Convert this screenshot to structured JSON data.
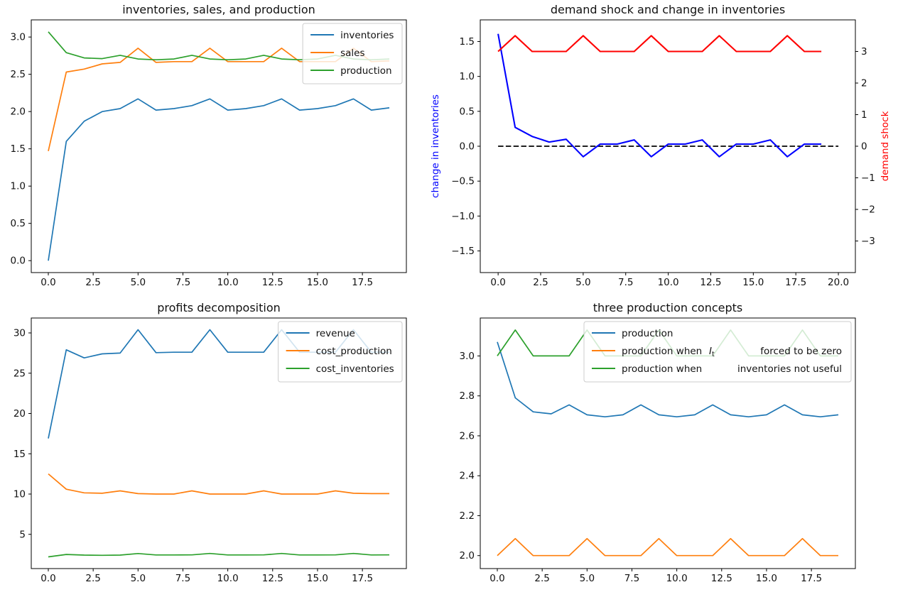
{
  "chart_data": [
    {
      "type": "line",
      "title": "inventories, sales, and production",
      "x": [
        0,
        1,
        2,
        3,
        4,
        5,
        6,
        7,
        8,
        9,
        10,
        11,
        12,
        13,
        14,
        15,
        16,
        17,
        18,
        19
      ],
      "series": [
        {
          "name": "inventories",
          "color": "#1f77b4",
          "values": [
            0.0,
            1.6,
            1.87,
            2.0,
            2.04,
            2.17,
            2.02,
            2.04,
            2.08,
            2.17,
            2.02,
            2.04,
            2.08,
            2.17,
            2.02,
            2.04,
            2.08,
            2.17,
            2.02,
            2.05
          ]
        },
        {
          "name": "sales",
          "color": "#ff7f0e",
          "values": [
            1.47,
            2.53,
            2.57,
            2.64,
            2.66,
            2.85,
            2.66,
            2.67,
            2.67,
            2.85,
            2.67,
            2.67,
            2.67,
            2.85,
            2.67,
            2.67,
            2.67,
            2.85,
            2.67,
            2.68
          ]
        },
        {
          "name": "production",
          "color": "#2ca02c",
          "values": [
            3.07,
            2.79,
            2.72,
            2.71,
            2.755,
            2.705,
            2.695,
            2.705,
            2.755,
            2.705,
            2.695,
            2.705,
            2.755,
            2.705,
            2.695,
            2.705,
            2.755,
            2.705,
            2.695,
            2.705
          ]
        }
      ],
      "xlim": [
        -0.95,
        19.95
      ],
      "ylim": [
        -0.16,
        3.23
      ],
      "xticks": [
        0,
        2.5,
        5,
        7.5,
        10,
        12.5,
        15,
        17.5
      ],
      "xtick_labels": [
        "0.0",
        "2.5",
        "5.0",
        "7.5",
        "10.0",
        "12.5",
        "15.0",
        "17.5"
      ],
      "yticks": [
        0,
        0.5,
        1,
        1.5,
        2,
        2.5,
        3
      ],
      "ytick_labels": [
        "0.0",
        "0.5",
        "1.0",
        "1.5",
        "2.0",
        "2.5",
        "3.0"
      ],
      "legend": {
        "position": "upper right",
        "entries": [
          {
            "label": "inventories"
          },
          {
            "label": "sales"
          },
          {
            "label": "production"
          }
        ]
      },
      "grid": false
    },
    {
      "type": "line",
      "title": "demand shock and change in inventories",
      "x": [
        0,
        1,
        2,
        3,
        4,
        5,
        6,
        7,
        8,
        9,
        10,
        11,
        12,
        13,
        14,
        15,
        16,
        17,
        18,
        19
      ],
      "ylabel_left": "change in inventories",
      "ylabel_left_color": "#0000ff",
      "ylabel_right": "demand shock",
      "ylabel_right_color": "#ff0000",
      "series": [
        {
          "name": "zero reference",
          "color": "#000000",
          "style": "dashed",
          "axis": "left",
          "x": [
            0,
            1,
            2,
            3,
            4,
            5,
            6,
            7,
            8,
            9,
            10,
            11,
            12,
            13,
            14,
            15,
            16,
            17,
            18,
            19,
            20
          ],
          "values": [
            0,
            0,
            0,
            0,
            0,
            0,
            0,
            0,
            0,
            0,
            0,
            0,
            0,
            0,
            0,
            0,
            0,
            0,
            0,
            0,
            0
          ]
        },
        {
          "name": "change in inventories",
          "color": "#0000ff",
          "axis": "left",
          "values": [
            1.61,
            0.27,
            0.14,
            0.06,
            0.1,
            -0.15,
            0.03,
            0.03,
            0.09,
            -0.15,
            0.03,
            0.03,
            0.09,
            -0.15,
            0.03,
            0.03,
            0.09,
            -0.15,
            0.03,
            0.03
          ]
        },
        {
          "name": "demand shock",
          "color": "#ff0000",
          "axis": "right",
          "values": [
            3,
            3.5,
            3,
            3,
            3,
            3.5,
            3,
            3,
            3,
            3.5,
            3,
            3,
            3,
            3.5,
            3,
            3,
            3,
            3.5,
            3,
            3
          ]
        }
      ],
      "xlim": [
        -1.05,
        21.0
      ],
      "ylim_left": [
        -1.81,
        1.81
      ],
      "ylim_right": [
        -4.0,
        4.0
      ],
      "xticks": [
        0,
        2.5,
        5,
        7.5,
        10,
        12.5,
        15,
        17.5,
        20
      ],
      "xtick_labels": [
        "0.0",
        "2.5",
        "5.0",
        "7.5",
        "10.0",
        "12.5",
        "15.0",
        "17.5",
        "20.0"
      ],
      "yticks_left": [
        -1.5,
        -1,
        -0.5,
        0,
        0.5,
        1,
        1.5
      ],
      "ytick_labels_left": [
        "−1.5",
        "−1.0",
        "−0.5",
        "0.0",
        "0.5",
        "1.0",
        "1.5"
      ],
      "yticks_right": [
        -3,
        -2,
        -1,
        0,
        1,
        2,
        3
      ],
      "ytick_labels_right": [
        "−3",
        "−2",
        "−1",
        "0",
        "1",
        "2",
        "3"
      ],
      "legend": null,
      "grid": false
    },
    {
      "type": "line",
      "title": "profits decomposition",
      "x": [
        0,
        1,
        2,
        3,
        4,
        5,
        6,
        7,
        8,
        9,
        10,
        11,
        12,
        13,
        14,
        15,
        16,
        17,
        18,
        19
      ],
      "series": [
        {
          "name": "revenue",
          "color": "#1f77b4",
          "values": [
            16.9,
            27.9,
            26.9,
            27.4,
            27.5,
            30.4,
            27.55,
            27.6,
            27.6,
            30.4,
            27.6,
            27.6,
            27.6,
            30.4,
            27.6,
            27.6,
            27.6,
            30.4,
            27.6,
            27.6
          ]
        },
        {
          "name": "cost_production",
          "color": "#ff7f0e",
          "values": [
            12.5,
            10.6,
            10.15,
            10.1,
            10.4,
            10.05,
            10.0,
            10.0,
            10.4,
            10.0,
            10.0,
            10.0,
            10.4,
            10.0,
            10.0,
            10.0,
            10.4,
            10.1,
            10.05,
            10.05
          ]
        },
        {
          "name": "cost_inventories",
          "color": "#2ca02c",
          "values": [
            2.2,
            2.5,
            2.42,
            2.4,
            2.42,
            2.62,
            2.44,
            2.44,
            2.45,
            2.63,
            2.44,
            2.44,
            2.45,
            2.63,
            2.44,
            2.44,
            2.45,
            2.63,
            2.44,
            2.45
          ]
        }
      ],
      "xlim": [
        -0.95,
        19.95
      ],
      "ylim": [
        0.75,
        31.85
      ],
      "xticks": [
        0,
        2.5,
        5,
        7.5,
        10,
        12.5,
        15,
        17.5
      ],
      "xtick_labels": [
        "0.0",
        "2.5",
        "5.0",
        "7.5",
        "10.0",
        "12.5",
        "15.0",
        "17.5"
      ],
      "yticks": [
        5,
        10,
        15,
        20,
        25,
        30
      ],
      "ytick_labels": [
        "5",
        "10",
        "15",
        "20",
        "25",
        "30"
      ],
      "legend": {
        "position": "upper right",
        "entries": [
          {
            "label": "revenue"
          },
          {
            "label": "cost_production"
          },
          {
            "label": "cost_inventories"
          }
        ]
      },
      "grid": false
    },
    {
      "type": "line",
      "title": "three production concepts",
      "x": [
        0,
        1,
        2,
        3,
        4,
        5,
        6,
        7,
        8,
        9,
        10,
        11,
        12,
        13,
        14,
        15,
        16,
        17,
        18,
        19
      ],
      "series": [
        {
          "name": "production",
          "color": "#1f77b4",
          "values": [
            3.07,
            2.79,
            2.72,
            2.71,
            2.755,
            2.705,
            2.695,
            2.705,
            2.755,
            2.705,
            2.695,
            2.705,
            2.755,
            2.705,
            2.695,
            2.705,
            2.755,
            2.705,
            2.695,
            2.705
          ]
        },
        {
          "name": "production when I_t forced to be zero",
          "color": "#ff7f0e",
          "values": [
            2.0,
            2.085,
            2.0,
            2.0,
            2.0,
            2.085,
            2.0,
            2.0,
            2.0,
            2.085,
            2.0,
            2.0,
            2.0,
            2.085,
            2.0,
            2.0,
            2.0,
            2.085,
            2.0,
            2.0
          ]
        },
        {
          "name": "production when inventories not useful",
          "color": "#2ca02c",
          "values": [
            3.0,
            3.13,
            3.0,
            3.0,
            3.0,
            3.13,
            3.0,
            3.0,
            3.0,
            3.13,
            3.0,
            3.0,
            3.0,
            3.13,
            3.0,
            3.0,
            3.0,
            3.13,
            3.0,
            3.0
          ]
        }
      ],
      "xlim": [
        -0.95,
        19.95
      ],
      "ylim": [
        1.935,
        3.19
      ],
      "xticks": [
        0,
        2.5,
        5,
        7.5,
        10,
        12.5,
        15,
        17.5
      ],
      "xtick_labels": [
        "0.0",
        "2.5",
        "5.0",
        "7.5",
        "10.0",
        "12.5",
        "15.0",
        "17.5"
      ],
      "yticks": [
        2.0,
        2.2,
        2.4,
        2.6,
        2.8,
        3.0
      ],
      "ytick_labels": [
        "2.0",
        "2.2",
        "2.4",
        "2.6",
        "2.8",
        "3.0"
      ],
      "legend": {
        "position": "upper right",
        "entries": [
          {
            "label": "production"
          },
          {
            "label": "production when",
            "math_symbol": "I_t",
            "label2": "forced to be zero"
          },
          {
            "label": "production when",
            "label2": "inventories not useful"
          }
        ]
      },
      "grid": false
    }
  ]
}
